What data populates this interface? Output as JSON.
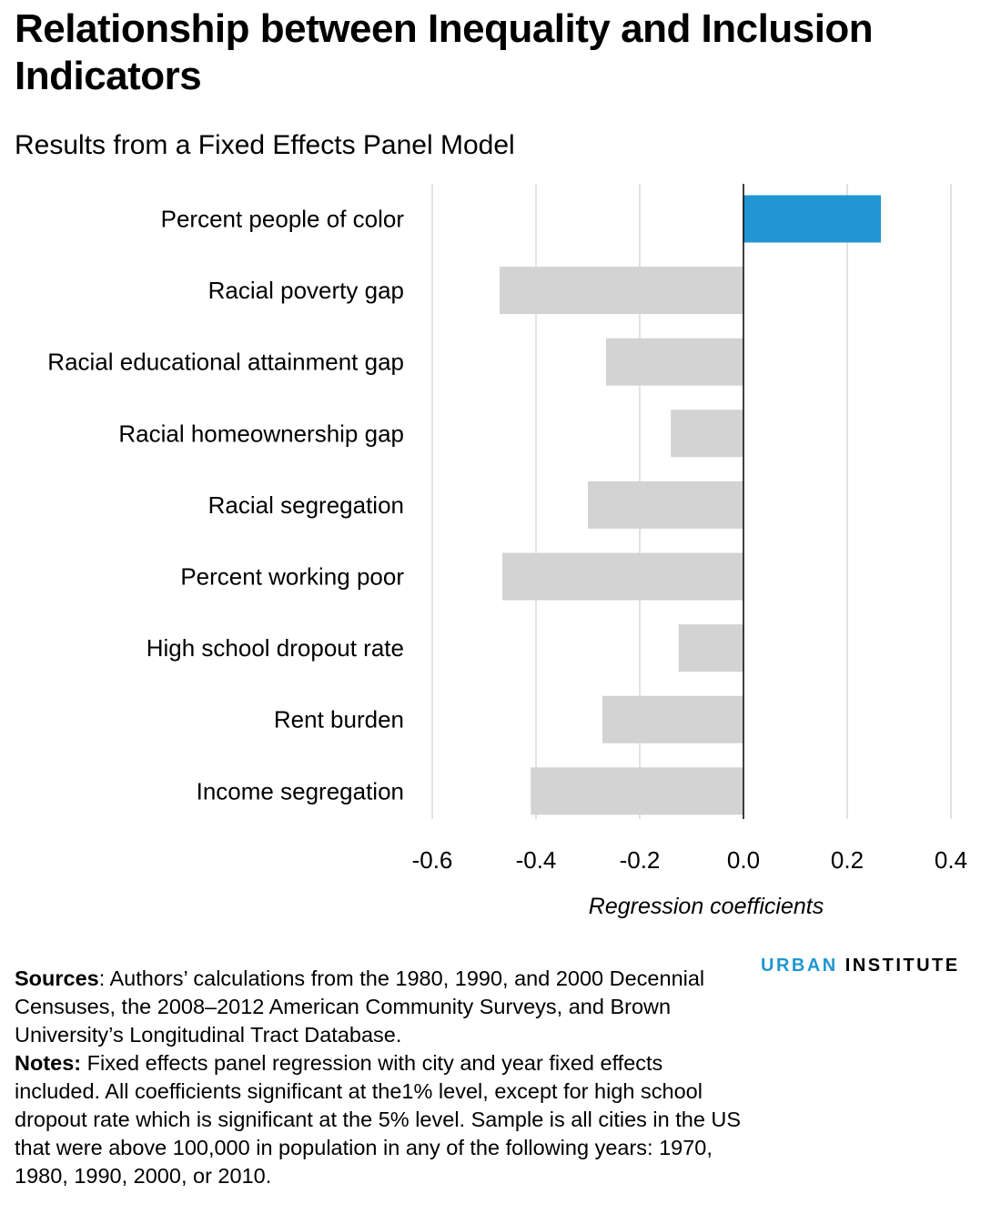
{
  "title": "Relationship between Inequality and Inclusion Indicators",
  "subtitle": "Results from a Fixed Effects Panel Model",
  "chart_data": {
    "type": "bar",
    "orientation": "horizontal",
    "categories": [
      "Percent people of color",
      "Racial poverty gap",
      "Racial educational attainment gap",
      "Racial homeownership gap",
      "Racial segregation",
      "Percent working poor",
      "High school dropout rate",
      "Rent burden",
      "Income segregation"
    ],
    "values": [
      0.265,
      -0.47,
      -0.265,
      -0.14,
      -0.3,
      -0.465,
      -0.125,
      -0.272,
      -0.41
    ],
    "xlabel": "Regression coefficients",
    "xlim": [
      -0.6,
      0.4
    ],
    "xticks": [
      -0.6,
      -0.4,
      -0.2,
      0.0,
      0.2,
      0.4
    ],
    "xtick_labels": [
      "-0.6",
      "-0.4",
      "-0.2",
      "0.0",
      "0.2",
      "0.4"
    ],
    "grid": "vertical",
    "colors": {
      "positive": "#2196d3",
      "negative": "#d3d3d3",
      "grid": "#d9d9d9",
      "zero_line": "#000000"
    }
  },
  "footer": {
    "sources_label": "Sources",
    "sources_text": ": Authors’ calculations from the 1980, 1990, and 2000 Decennial Censuses, the 2008–2012 American Community Surveys, and Brown University’s Longitudinal Tract Database.",
    "notes_label": "Notes:",
    "notes_text": " Fixed effects panel regression with city and year fixed effects included. All coefficients significant at the1% level, except for high school dropout rate which is significant at the 5% level. Sample is all cities in the US that were above 100,000 in population in any of the following years: 1970, 1980, 1990, 2000, or 2010."
  },
  "brand": {
    "part1": "URBAN",
    "part2": "INSTITUTE",
    "color": "#1f96d2"
  }
}
